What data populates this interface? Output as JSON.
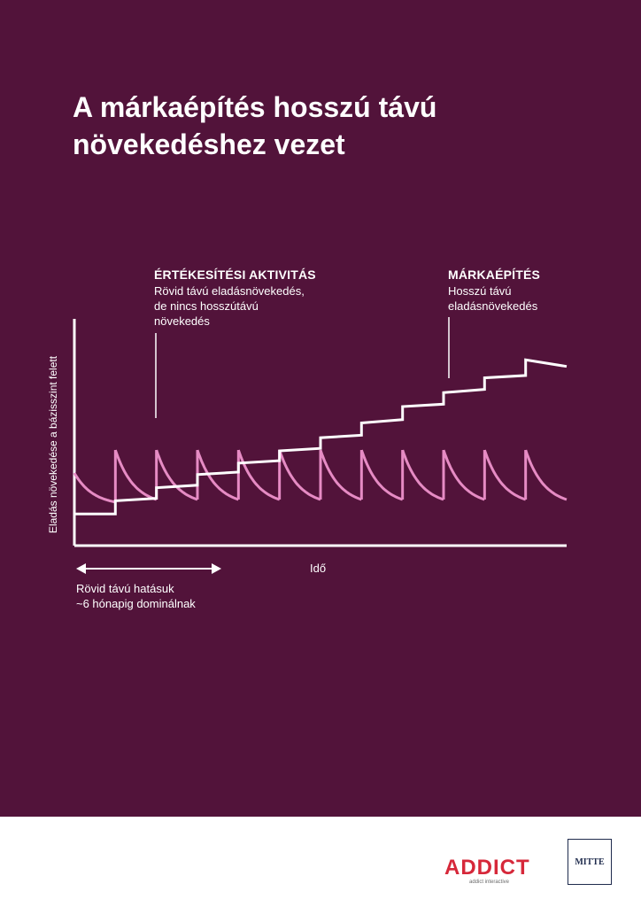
{
  "page": {
    "title_lines": [
      "A márkaépítés hosszú távú",
      "növekedéshez vezet"
    ],
    "background_color": "#52133a",
    "footer_background": "#ffffff"
  },
  "annotations": {
    "sales_activation": {
      "heading": "ÉRTÉKESÍTÉSI AKTIVITÁS",
      "lines": [
        "Rövid távú eladásnövekedés,",
        "de nincs hosszútávú",
        "növekedés"
      ]
    },
    "brand_building": {
      "heading": "MÁRKAÉPÍTÉS",
      "lines": [
        "Hosszú távú",
        "eladásnövekedés"
      ]
    }
  },
  "chart_data": {
    "type": "line",
    "xlabel": "Idő",
    "ylabel": "Eladás növekedése a bázisszint felett",
    "short_term_note": [
      "Rövid távú hatásuk",
      "~6 hónapig dominálnak"
    ],
    "grid": false,
    "legend": "none",
    "xlim": [
      0,
      12
    ],
    "ylim": [
      0,
      10
    ],
    "series": [
      {
        "color": "#e68bc4",
        "style": "sawtooth",
        "start_value": 3.3,
        "spike_times": [
          1,
          2,
          3,
          4,
          5,
          6,
          7,
          8,
          9,
          10,
          11
        ],
        "spike_peak": 4.7,
        "decay_floor": 1.3,
        "end_time": 12
      },
      {
        "color": "#ffffff",
        "style": "staircase",
        "step_times": [
          1,
          2,
          3,
          4,
          5,
          6,
          7,
          8,
          9,
          10,
          11
        ],
        "points": [
          [
            0,
            0.8
          ],
          [
            1,
            0.8
          ],
          [
            1,
            1.6
          ],
          [
            2,
            1.75
          ],
          [
            2,
            2.4
          ],
          [
            3,
            2.55
          ],
          [
            3,
            3.2
          ],
          [
            4,
            3.35
          ],
          [
            4,
            3.9
          ],
          [
            5,
            4.05
          ],
          [
            5,
            4.65
          ],
          [
            6,
            4.8
          ],
          [
            6,
            5.45
          ],
          [
            7,
            5.6
          ],
          [
            7,
            6.35
          ],
          [
            8,
            6.55
          ],
          [
            8,
            7.35
          ],
          [
            9,
            7.5
          ],
          [
            9,
            8.2
          ],
          [
            10,
            8.4
          ],
          [
            10,
            9.1
          ],
          [
            11,
            9.25
          ],
          [
            11,
            10.2
          ],
          [
            12,
            9.8
          ]
        ]
      }
    ]
  },
  "logos": {
    "addict": "ADDICT",
    "addict_sub": "addict interactive",
    "mitte": "MITTE"
  }
}
